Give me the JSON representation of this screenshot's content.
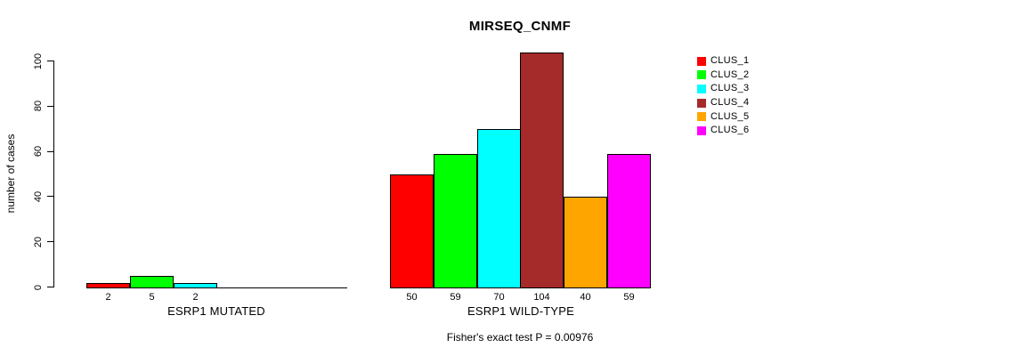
{
  "chart_data": {
    "type": "bar",
    "title": "MIRSEQ_CNMF",
    "ylabel": "number of cases",
    "xlabel": "",
    "ylim": [
      0,
      100
    ],
    "yticks": [
      0,
      20,
      40,
      60,
      80,
      100
    ],
    "grid": false,
    "annotation": "Fisher's exact test P = 0.00976",
    "legend": {
      "position": "right",
      "entries": [
        {
          "label": "CLUS_1",
          "color": "#FF0000"
        },
        {
          "label": "CLUS_2",
          "color": "#00FF00"
        },
        {
          "label": "CLUS_3",
          "color": "#00FFFF"
        },
        {
          "label": "CLUS_4",
          "color": "#A52A2A"
        },
        {
          "label": "CLUS_5",
          "color": "#FFA500"
        },
        {
          "label": "CLUS_6",
          "color": "#FF00FF"
        }
      ]
    },
    "groups": [
      {
        "label": "ESRP1 MUTATED",
        "clusters": [
          "CLUS_1",
          "CLUS_2",
          "CLUS_3"
        ],
        "values": [
          2,
          5,
          2
        ],
        "colors": [
          "#FF0000",
          "#00FF00",
          "#00FFFF"
        ]
      },
      {
        "label": "ESRP1 WILD-TYPE",
        "clusters": [
          "CLUS_1",
          "CLUS_2",
          "CLUS_3",
          "CLUS_4",
          "CLUS_5",
          "CLUS_6"
        ],
        "values": [
          50,
          59,
          70,
          104,
          40,
          59
        ],
        "colors": [
          "#FF0000",
          "#00FF00",
          "#00FFFF",
          "#A52A2A",
          "#FFA500",
          "#FF00FF"
        ]
      }
    ]
  }
}
